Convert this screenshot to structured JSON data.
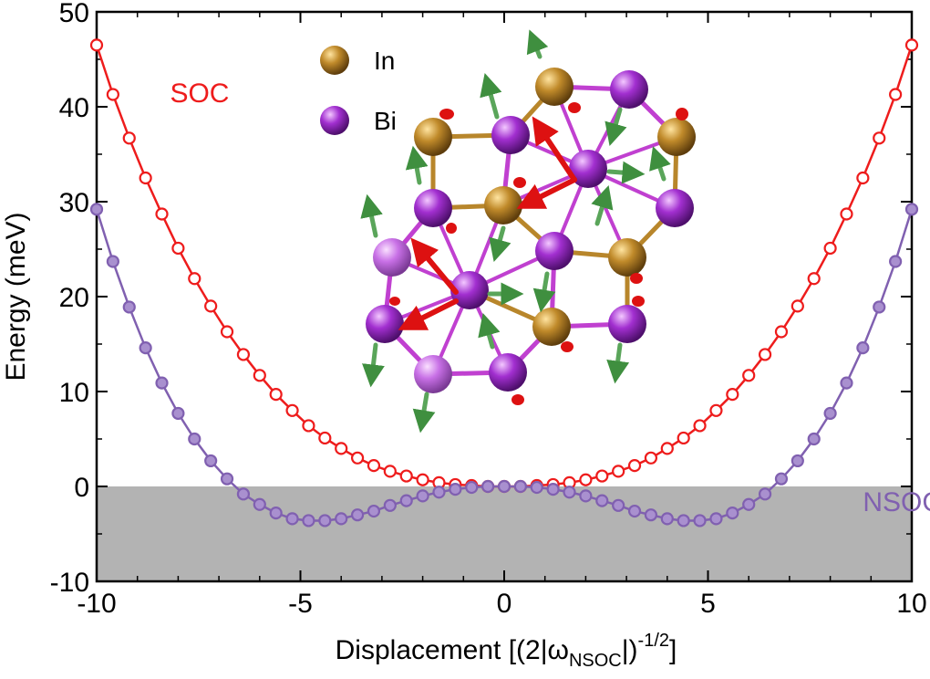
{
  "chart_data": {
    "type": "line",
    "xlabel_main": "Displacement [(2|ω",
    "xlabel_sub": "NSOC",
    "xlabel_tail": "|)",
    "xlabel_sup": "-1/2",
    "xlabel_close": "]",
    "ylabel": "Energy (meV)",
    "xlim": [
      -10,
      10
    ],
    "ylim": [
      -10,
      50
    ],
    "xticks": [
      -10,
      -5,
      0,
      5,
      10
    ],
    "xtick_labels": [
      "-10",
      "-5",
      "0",
      "5",
      "10"
    ],
    "yticks": [
      -10,
      0,
      10,
      20,
      30,
      40,
      50
    ],
    "ytick_labels": [
      "-10",
      "0",
      "10",
      "20",
      "30",
      "40",
      "50"
    ],
    "shaded_region": {
      "y_from": -10,
      "y_to": 0,
      "color": "#b3b3b3"
    },
    "grid": false,
    "series": [
      {
        "name": "SOC",
        "color": "#ee1c1c",
        "marker": "open-circle",
        "x": [
          -10,
          -9.6,
          -9.2,
          -8.8,
          -8.4,
          -8.0,
          -7.6,
          -7.2,
          -6.8,
          -6.4,
          -6.0,
          -5.6,
          -5.2,
          -4.8,
          -4.4,
          -4.0,
          -3.6,
          -3.2,
          -2.8,
          -2.4,
          -2.0,
          -1.6,
          -1.2,
          -0.8,
          -0.4,
          0,
          0.4,
          0.8,
          1.2,
          1.6,
          2.0,
          2.4,
          2.8,
          3.2,
          3.6,
          4.0,
          4.4,
          4.8,
          5.2,
          5.6,
          6.0,
          6.4,
          6.8,
          7.2,
          7.6,
          8.0,
          8.4,
          8.8,
          9.2,
          9.6,
          10
        ],
        "y": [
          46.5,
          41.3,
          36.7,
          32.5,
          28.7,
          25.1,
          21.9,
          19.0,
          16.3,
          13.9,
          11.7,
          9.7,
          8.0,
          6.4,
          5.1,
          4.0,
          3.0,
          2.2,
          1.6,
          1.1,
          0.7,
          0.4,
          0.2,
          0.1,
          0.0,
          0.0,
          0.0,
          0.1,
          0.2,
          0.4,
          0.7,
          1.1,
          1.6,
          2.2,
          3.0,
          4.0,
          5.1,
          6.4,
          8.0,
          9.7,
          11.7,
          13.9,
          16.3,
          19.0,
          21.9,
          25.1,
          28.7,
          32.5,
          36.7,
          41.3,
          46.5
        ]
      },
      {
        "name": "NSOC",
        "color": "#8060b0",
        "marker": "filled-circle",
        "x": [
          -10,
          -9.6,
          -9.2,
          -8.8,
          -8.4,
          -8.0,
          -7.6,
          -7.2,
          -6.8,
          -6.4,
          -6.0,
          -5.6,
          -5.2,
          -4.8,
          -4.4,
          -4.0,
          -3.6,
          -3.2,
          -2.8,
          -2.4,
          -2.0,
          -1.6,
          -1.2,
          -0.8,
          -0.4,
          0,
          0.4,
          0.8,
          1.2,
          1.6,
          2.0,
          2.4,
          2.8,
          3.2,
          3.6,
          4.0,
          4.4,
          4.8,
          5.2,
          5.6,
          6.0,
          6.4,
          6.8,
          7.2,
          7.6,
          8.0,
          8.4,
          8.8,
          9.2,
          9.6,
          10
        ],
        "y": [
          29.2,
          23.7,
          18.9,
          14.6,
          10.9,
          7.7,
          5.0,
          2.7,
          0.8,
          -0.8,
          -1.9,
          -2.8,
          -3.4,
          -3.6,
          -3.6,
          -3.4,
          -3.0,
          -2.6,
          -2.0,
          -1.5,
          -1.0,
          -0.6,
          -0.3,
          -0.1,
          0.0,
          0.0,
          0.0,
          -0.1,
          -0.3,
          -0.6,
          -1.0,
          -1.5,
          -2.0,
          -2.6,
          -3.0,
          -3.4,
          -3.6,
          -3.6,
          -3.4,
          -2.8,
          -1.9,
          -0.8,
          0.8,
          2.7,
          5.0,
          7.7,
          10.9,
          14.6,
          18.9,
          23.7,
          29.2
        ]
      }
    ],
    "annotations": [
      {
        "text": "SOC",
        "color": "#ee1c1c",
        "x": -8.2,
        "y": 40.5
      },
      {
        "text": "NSOC",
        "color": "#8060b0",
        "x": 8.8,
        "y": -2.6
      }
    ]
  },
  "inset": {
    "legend": [
      {
        "label": "In",
        "color": "#b8862b"
      },
      {
        "label": "Bi",
        "color": "#b040d8"
      }
    ],
    "colors": {
      "in_atom": "#b8862b",
      "bi_atom": "#9a2fc8",
      "bi_light": "#c46be0",
      "bond_bi": "#c040d0",
      "bond_in": "#b8862b",
      "arrow_red": "#dd1111",
      "arrow_green": "#4a9a4a"
    }
  }
}
